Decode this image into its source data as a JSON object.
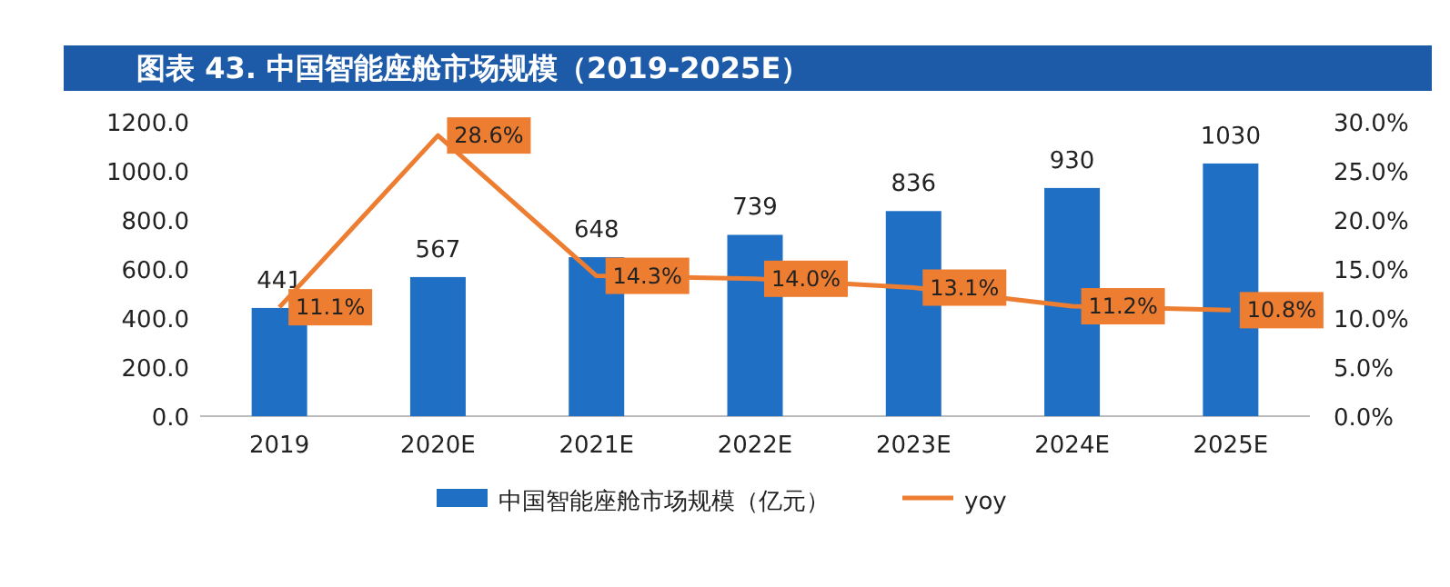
{
  "chart_data": {
    "type": "bar",
    "title": "图表 43. 中国智能座舱市场规模（2019-2025E）",
    "categories": [
      "2019",
      "2020E",
      "2021E",
      "2022E",
      "2023E",
      "2024E",
      "2025E"
    ],
    "series": [
      {
        "name": "中国智能座舱市场规模（亿元）",
        "color": "#1f6fc5",
        "values": [
          441,
          567,
          648,
          739,
          836,
          930,
          1030
        ],
        "value_labels": [
          "441",
          "567",
          "648",
          "739",
          "836",
          "930",
          "1030"
        ]
      },
      {
        "name": "yoy",
        "type": "line",
        "axis": "y2",
        "color": "#ed7d31",
        "values": [
          11.1,
          28.6,
          14.3,
          14.0,
          13.1,
          11.2,
          10.8
        ],
        "value_labels": [
          "11.1%",
          "28.6%",
          "14.3%",
          "14.0%",
          "13.1%",
          "11.2%",
          "10.8%"
        ]
      }
    ],
    "ylim": [
      0,
      1200
    ],
    "yticks": [
      {
        "value": 0,
        "label": "0.0"
      },
      {
        "value": 200,
        "label": "200.0"
      },
      {
        "value": 400,
        "label": "400.0"
      },
      {
        "value": 600,
        "label": "600.0"
      },
      {
        "value": 800,
        "label": "800.0"
      },
      {
        "value": 1000,
        "label": "1000.0"
      },
      {
        "value": 1200,
        "label": "1200.0"
      }
    ],
    "y2lim": [
      0,
      30
    ],
    "y2ticks": [
      {
        "value": 0,
        "label": "0.0%"
      },
      {
        "value": 5,
        "label": "5.0%"
      },
      {
        "value": 10,
        "label": "10.0%"
      },
      {
        "value": 15,
        "label": "15.0%"
      },
      {
        "value": 20,
        "label": "20.0%"
      },
      {
        "value": 25,
        "label": "25.0%"
      },
      {
        "value": 30,
        "label": "30.0%"
      }
    ],
    "legend": "bottom",
    "grid": false
  }
}
